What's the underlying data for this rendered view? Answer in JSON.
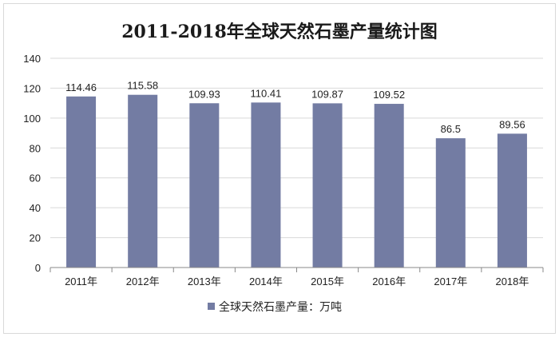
{
  "chart_data": {
    "type": "bar",
    "title": "2011-2018年全球天然石墨产量统计图",
    "categories": [
      "2011年",
      "2012年",
      "2013年",
      "2014年",
      "2015年",
      "2016年",
      "2017年",
      "2018年"
    ],
    "series": [
      {
        "name": "全球天然石墨产量：万吨",
        "values": [
          114.46,
          115.58,
          109.93,
          110.41,
          109.87,
          109.52,
          86.5,
          89.56
        ],
        "labels": [
          "114.46",
          "115.58",
          "109.93",
          "110.41",
          "109.87",
          "109.52",
          "86.5",
          "89.56"
        ]
      }
    ],
    "ylim": [
      0,
      140
    ],
    "yticks": [
      0,
      20,
      40,
      60,
      80,
      100,
      120,
      140
    ],
    "grid": true,
    "legend_position": "bottom",
    "colors": {
      "bar": "#737ca3",
      "grid": "#d9d9d9",
      "axis": "#888888"
    }
  }
}
